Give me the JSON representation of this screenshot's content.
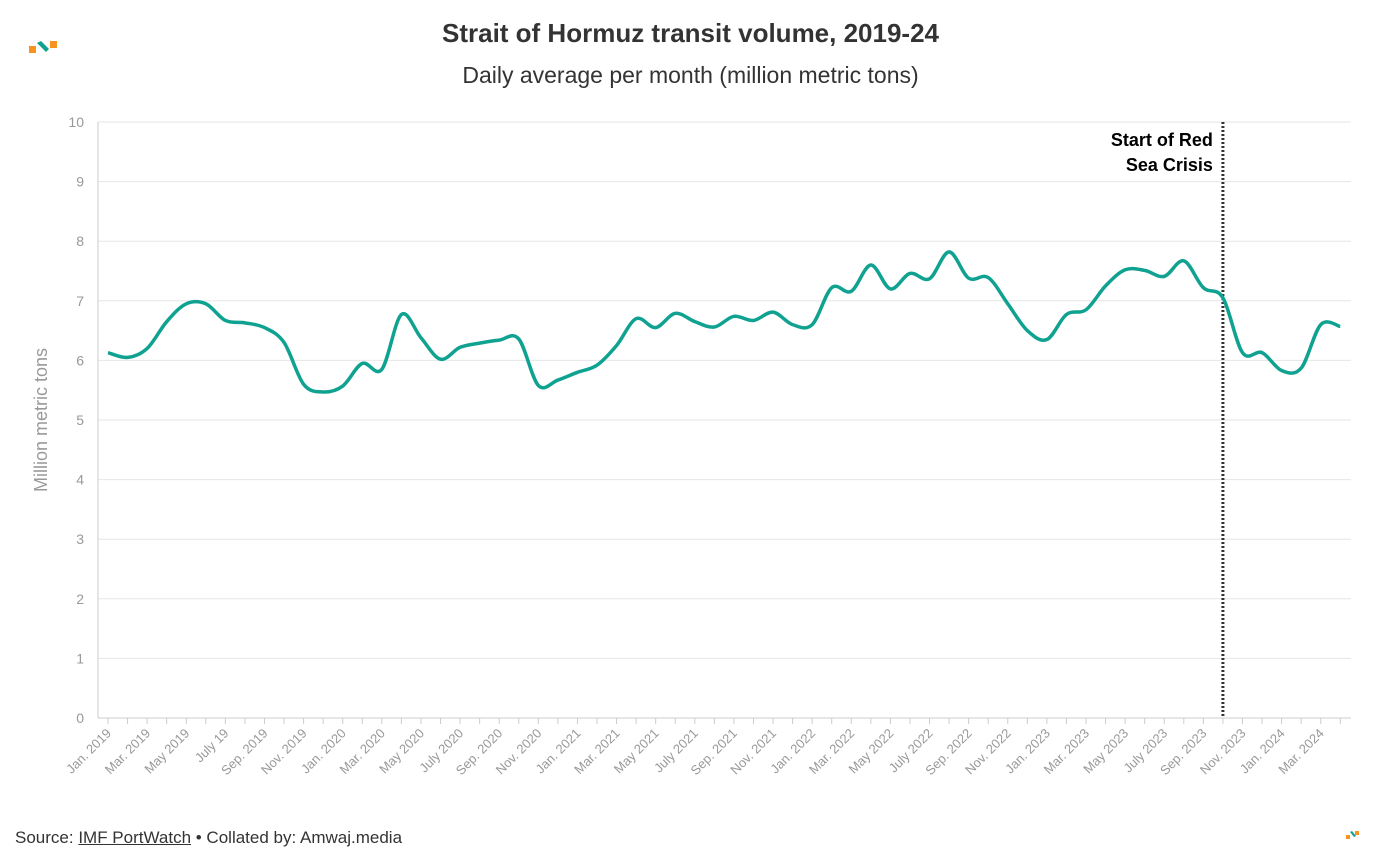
{
  "header": {
    "title": "Strait of Hormuz transit volume, 2019-24",
    "subtitle": "Daily average per month (million metric tons)"
  },
  "footer": {
    "source_label": "Source: ",
    "source_link": "IMF PortWatch",
    "collated": " • Collated by: Amwaj.media"
  },
  "colors": {
    "line": "#0fa291",
    "logo_orange": "#f7931e",
    "logo_teal": "#0fa291",
    "grid": "#e6e6e6",
    "axis_text": "#999999"
  },
  "chart_data": {
    "type": "line",
    "title": "Strait of Hormuz transit volume, 2019-24",
    "ylabel": "Million metric tons",
    "xlabel": "",
    "ylim": [
      0,
      10
    ],
    "yticks": [
      0,
      1,
      2,
      3,
      4,
      5,
      6,
      7,
      8,
      9,
      10
    ],
    "grid": true,
    "xtick_labels": [
      "Jan. 2019",
      "Mar. 2019",
      "May 2019",
      "July 19",
      "Sep. 2019",
      "Nov. 2019",
      "Jan. 2020",
      "Mar. 2020",
      "May 2020",
      "July 2020",
      "Sep. 2020",
      "Nov. 2020",
      "Jan. 2021",
      "Mar. 2021",
      "May 2021",
      "July 2021",
      "Sep. 2021",
      "Nov. 2021",
      "Jan. 2022",
      "Mar. 2022",
      "May 2022",
      "July 2022",
      "Sep. 2022",
      "Nov. 2022",
      "Jan. 2023",
      "Mar. 2023",
      "May 2023",
      "July 2023",
      "Sep. 2023",
      "Nov. 2023",
      "Jan. 2024",
      "Mar. 2024"
    ],
    "x_start": "2019-01",
    "x_end": "2024-04",
    "series": [
      {
        "name": "Transit volume",
        "values": [
          6.13,
          6.05,
          6.2,
          6.65,
          6.95,
          6.95,
          6.67,
          6.63,
          6.55,
          6.3,
          5.6,
          5.47,
          5.57,
          5.95,
          5.85,
          6.77,
          6.38,
          6.02,
          6.22,
          6.29,
          6.34,
          6.36,
          5.58,
          5.67,
          5.8,
          5.92,
          6.25,
          6.7,
          6.55,
          6.79,
          6.65,
          6.56,
          6.74,
          6.67,
          6.81,
          6.6,
          6.6,
          7.22,
          7.16,
          7.6,
          7.2,
          7.46,
          7.37,
          7.82,
          7.38,
          7.39,
          6.95,
          6.5,
          6.35,
          6.77,
          6.85,
          7.25,
          7.52,
          7.51,
          7.41,
          7.67,
          7.22,
          7.05,
          6.13,
          6.13,
          5.83,
          5.87,
          6.6,
          6.57
        ]
      }
    ],
    "annotations": [
      {
        "text_line1": "Start of Red",
        "text_line2": "Sea Crisis",
        "month_index": 57,
        "month": "2023-10"
      }
    ]
  }
}
